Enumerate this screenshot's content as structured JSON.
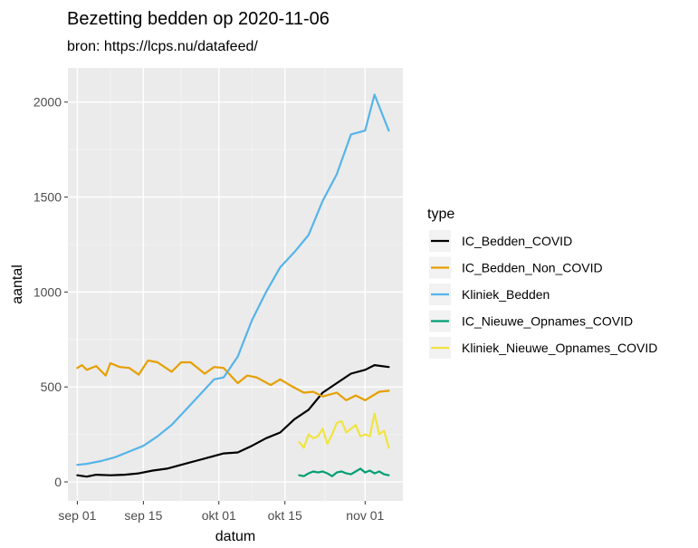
{
  "chart_data": {
    "type": "line",
    "title": "Bezetting bedden op 2020-11-06",
    "subtitle": "bron: https://lcps.nu/datafeed/",
    "xlabel": "datum",
    "ylabel": "aantal",
    "x_axis_type": "date",
    "xlim": [
      "2020-08-30",
      "2020-11-09"
    ],
    "ylim": [
      -100,
      2180
    ],
    "x_ticks": [
      {
        "date": "2020-09-01",
        "label": "sep 01"
      },
      {
        "date": "2020-09-15",
        "label": "sep 15"
      },
      {
        "date": "2020-10-01",
        "label": "okt 01"
      },
      {
        "date": "2020-10-15",
        "label": "okt 15"
      },
      {
        "date": "2020-11-01",
        "label": "nov 01"
      }
    ],
    "y_ticks": [
      0,
      500,
      1000,
      1500,
      2000
    ],
    "grid": true,
    "legend": {
      "title": "type",
      "position": "right"
    },
    "series": [
      {
        "name": "IC_Bedden_COVID",
        "color": "#000000",
        "points": [
          [
            "2020-09-01",
            35
          ],
          [
            "2020-09-03",
            28
          ],
          [
            "2020-09-05",
            38
          ],
          [
            "2020-09-08",
            35
          ],
          [
            "2020-09-11",
            38
          ],
          [
            "2020-09-14",
            45
          ],
          [
            "2020-09-17",
            60
          ],
          [
            "2020-09-20",
            70
          ],
          [
            "2020-09-23",
            90
          ],
          [
            "2020-09-26",
            110
          ],
          [
            "2020-09-29",
            130
          ],
          [
            "2020-10-02",
            150
          ],
          [
            "2020-10-05",
            155
          ],
          [
            "2020-10-08",
            190
          ],
          [
            "2020-10-11",
            230
          ],
          [
            "2020-10-14",
            260
          ],
          [
            "2020-10-17",
            330
          ],
          [
            "2020-10-20",
            380
          ],
          [
            "2020-10-23",
            470
          ],
          [
            "2020-10-26",
            520
          ],
          [
            "2020-10-29",
            570
          ],
          [
            "2020-11-01",
            590
          ],
          [
            "2020-11-03",
            615
          ],
          [
            "2020-11-06",
            605
          ]
        ]
      },
      {
        "name": "IC_Bedden_Non_COVID",
        "color": "#E69F00",
        "points": [
          [
            "2020-09-01",
            600
          ],
          [
            "2020-09-02",
            615
          ],
          [
            "2020-09-03",
            590
          ],
          [
            "2020-09-05",
            610
          ],
          [
            "2020-09-07",
            560
          ],
          [
            "2020-09-08",
            625
          ],
          [
            "2020-09-10",
            605
          ],
          [
            "2020-09-12",
            600
          ],
          [
            "2020-09-14",
            565
          ],
          [
            "2020-09-16",
            640
          ],
          [
            "2020-09-18",
            630
          ],
          [
            "2020-09-21",
            580
          ],
          [
            "2020-09-23",
            630
          ],
          [
            "2020-09-25",
            630
          ],
          [
            "2020-09-28",
            570
          ],
          [
            "2020-09-30",
            605
          ],
          [
            "2020-10-02",
            600
          ],
          [
            "2020-10-05",
            520
          ],
          [
            "2020-10-07",
            560
          ],
          [
            "2020-10-09",
            550
          ],
          [
            "2020-10-12",
            510
          ],
          [
            "2020-10-14",
            540
          ],
          [
            "2020-10-16",
            510
          ],
          [
            "2020-10-19",
            470
          ],
          [
            "2020-10-21",
            475
          ],
          [
            "2020-10-23",
            450
          ],
          [
            "2020-10-26",
            470
          ],
          [
            "2020-10-28",
            430
          ],
          [
            "2020-10-30",
            455
          ],
          [
            "2020-11-01",
            430
          ],
          [
            "2020-11-04",
            475
          ],
          [
            "2020-11-06",
            480
          ]
        ]
      },
      {
        "name": "Kliniek_Bedden",
        "color": "#56B4E9",
        "points": [
          [
            "2020-09-01",
            90
          ],
          [
            "2020-09-03",
            95
          ],
          [
            "2020-09-06",
            110
          ],
          [
            "2020-09-09",
            130
          ],
          [
            "2020-09-12",
            160
          ],
          [
            "2020-09-15",
            190
          ],
          [
            "2020-09-18",
            240
          ],
          [
            "2020-09-21",
            300
          ],
          [
            "2020-09-24",
            380
          ],
          [
            "2020-09-27",
            460
          ],
          [
            "2020-09-30",
            540
          ],
          [
            "2020-10-02",
            550
          ],
          [
            "2020-10-05",
            660
          ],
          [
            "2020-10-08",
            850
          ],
          [
            "2020-10-11",
            1000
          ],
          [
            "2020-10-14",
            1130
          ],
          [
            "2020-10-17",
            1210
          ],
          [
            "2020-10-20",
            1300
          ],
          [
            "2020-10-23",
            1480
          ],
          [
            "2020-10-26",
            1620
          ],
          [
            "2020-10-29",
            1830
          ],
          [
            "2020-11-01",
            1850
          ],
          [
            "2020-11-03",
            2040
          ],
          [
            "2020-11-06",
            1850
          ]
        ]
      },
      {
        "name": "IC_Nieuwe_Opnames_COVID",
        "color": "#009E73",
        "points": [
          [
            "2020-10-18",
            35
          ],
          [
            "2020-10-19",
            30
          ],
          [
            "2020-10-20",
            45
          ],
          [
            "2020-10-21",
            55
          ],
          [
            "2020-10-22",
            50
          ],
          [
            "2020-10-23",
            55
          ],
          [
            "2020-10-24",
            45
          ],
          [
            "2020-10-25",
            30
          ],
          [
            "2020-10-26",
            50
          ],
          [
            "2020-10-27",
            55
          ],
          [
            "2020-10-28",
            45
          ],
          [
            "2020-10-29",
            40
          ],
          [
            "2020-10-30",
            55
          ],
          [
            "2020-10-31",
            70
          ],
          [
            "2020-11-01",
            50
          ],
          [
            "2020-11-02",
            60
          ],
          [
            "2020-11-03",
            45
          ],
          [
            "2020-11-04",
            55
          ],
          [
            "2020-11-05",
            40
          ],
          [
            "2020-11-06",
            35
          ]
        ]
      },
      {
        "name": "Kliniek_Nieuwe_Opnames_COVID",
        "color": "#F0E442",
        "points": [
          [
            "2020-10-18",
            210
          ],
          [
            "2020-10-19",
            180
          ],
          [
            "2020-10-20",
            250
          ],
          [
            "2020-10-21",
            230
          ],
          [
            "2020-10-22",
            240
          ],
          [
            "2020-10-23",
            280
          ],
          [
            "2020-10-24",
            200
          ],
          [
            "2020-10-25",
            250
          ],
          [
            "2020-10-26",
            310
          ],
          [
            "2020-10-27",
            320
          ],
          [
            "2020-10-28",
            260
          ],
          [
            "2020-10-29",
            280
          ],
          [
            "2020-10-30",
            300
          ],
          [
            "2020-10-31",
            240
          ],
          [
            "2020-11-01",
            250
          ],
          [
            "2020-11-02",
            240
          ],
          [
            "2020-11-03",
            360
          ],
          [
            "2020-11-04",
            250
          ],
          [
            "2020-11-05",
            270
          ],
          [
            "2020-11-06",
            180
          ]
        ]
      }
    ]
  }
}
